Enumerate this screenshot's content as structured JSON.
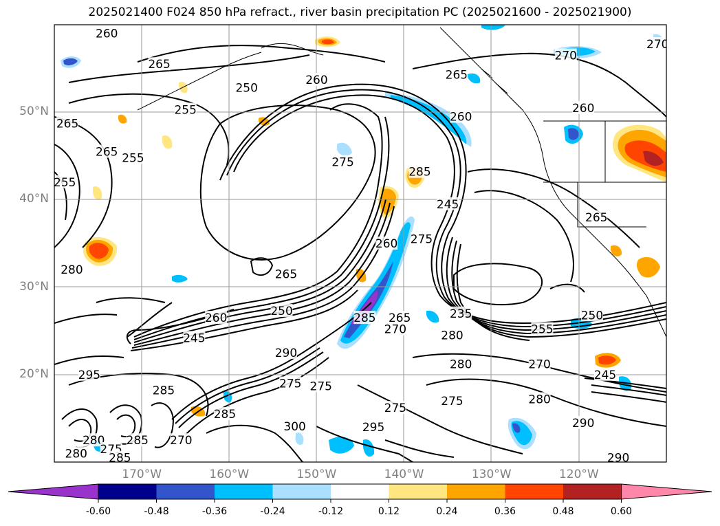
{
  "title": "2025021400 F024 850 hPa refract., river basin precipitation PC (2025021600 - 2025021900)",
  "map": {
    "lon_range": [
      -180,
      -110
    ],
    "lat_range": [
      10,
      60
    ],
    "grid": true,
    "lat_labels": [
      "50°N",
      "40°N",
      "30°N",
      "20°N"
    ],
    "lat_values": [
      50,
      40,
      30,
      20
    ],
    "lon_labels": [
      "170°W",
      "160°W",
      "150°W",
      "140°W",
      "130°W",
      "120°W"
    ],
    "lon_values": [
      -170,
      -160,
      -150,
      -140,
      -130,
      -120
    ],
    "contour_labels": [
      {
        "text": "260",
        "lon": -174,
        "lat": 59
      },
      {
        "text": "265",
        "lon": -168,
        "lat": 55.5
      },
      {
        "text": "250",
        "lon": -158,
        "lat": 52.8
      },
      {
        "text": "260",
        "lon": -150,
        "lat": 53.7
      },
      {
        "text": "255",
        "lon": -165,
        "lat": 50.3
      },
      {
        "text": "265",
        "lon": -178.5,
        "lat": 48.7
      },
      {
        "text": "265",
        "lon": -174,
        "lat": 45.5
      },
      {
        "text": "255",
        "lon": -171,
        "lat": 44.8
      },
      {
        "text": "255",
        "lon": -178.8,
        "lat": 42
      },
      {
        "text": "275",
        "lon": -147,
        "lat": 44.3
      },
      {
        "text": "285",
        "lon": -138.2,
        "lat": 43.2
      },
      {
        "text": "245",
        "lon": -135,
        "lat": 39.5
      },
      {
        "text": "275",
        "lon": -138,
        "lat": 35.5
      },
      {
        "text": "260",
        "lon": -142,
        "lat": 35
      },
      {
        "text": "265",
        "lon": -153.5,
        "lat": 31.5
      },
      {
        "text": "280",
        "lon": -178,
        "lat": 32
      },
      {
        "text": "250",
        "lon": -154,
        "lat": 27.3
      },
      {
        "text": "260",
        "lon": -161.5,
        "lat": 26.5
      },
      {
        "text": "285",
        "lon": -144.5,
        "lat": 26.5
      },
      {
        "text": "265",
        "lon": -140.5,
        "lat": 26.5
      },
      {
        "text": "270",
        "lon": -141,
        "lat": 25.2
      },
      {
        "text": "235",
        "lon": -133.5,
        "lat": 27
      },
      {
        "text": "280",
        "lon": -134.5,
        "lat": 24.5
      },
      {
        "text": "255",
        "lon": -124.2,
        "lat": 25.2
      },
      {
        "text": "250",
        "lon": -118.5,
        "lat": 26.8
      },
      {
        "text": "265",
        "lon": -118,
        "lat": 38
      },
      {
        "text": "260",
        "lon": -119.5,
        "lat": 50.5
      },
      {
        "text": "260",
        "lon": -133.5,
        "lat": 49.5
      },
      {
        "text": "270",
        "lon": -121.5,
        "lat": 56.5
      },
      {
        "text": "270",
        "lon": -111,
        "lat": 57.8
      },
      {
        "text": "265",
        "lon": -134,
        "lat": 54.3
      },
      {
        "text": "245",
        "lon": -164,
        "lat": 24.2
      },
      {
        "text": "290",
        "lon": -153.5,
        "lat": 22.5
      },
      {
        "text": "280",
        "lon": -133.5,
        "lat": 21.2
      },
      {
        "text": "270",
        "lon": -124.5,
        "lat": 21.2
      },
      {
        "text": "245",
        "lon": -117,
        "lat": 20
      },
      {
        "text": "280",
        "lon": -124.5,
        "lat": 17.2
      },
      {
        "text": "275",
        "lon": -134.5,
        "lat": 17
      },
      {
        "text": "275",
        "lon": -141,
        "lat": 16.2
      },
      {
        "text": "295",
        "lon": -143.5,
        "lat": 14
      },
      {
        "text": "290",
        "lon": -119.5,
        "lat": 14.5
      },
      {
        "text": "290",
        "lon": -115.5,
        "lat": 10.5
      },
      {
        "text": "295",
        "lon": -176,
        "lat": 20
      },
      {
        "text": "285",
        "lon": -167.5,
        "lat": 18.2
      },
      {
        "text": "285",
        "lon": -160.5,
        "lat": 15.5
      },
      {
        "text": "300",
        "lon": -152.5,
        "lat": 14.1
      },
      {
        "text": "275",
        "lon": -149.5,
        "lat": 18.7
      },
      {
        "text": "275",
        "lon": -153,
        "lat": 19
      },
      {
        "text": "270",
        "lon": -165.5,
        "lat": 12.5
      },
      {
        "text": "285",
        "lon": -170.5,
        "lat": 12.5
      },
      {
        "text": "280",
        "lon": -175.5,
        "lat": 12.5
      },
      {
        "text": "275",
        "lon": -173.5,
        "lat": 11.5
      },
      {
        "text": "280",
        "lon": -177.5,
        "lat": 11
      },
      {
        "text": "285",
        "lon": -172.5,
        "lat": 10.5
      }
    ]
  },
  "colorbar": {
    "labels": [
      "-0.60",
      "-0.48",
      "-0.36",
      "-0.24",
      "-0.12",
      "0.12",
      "0.24",
      "0.36",
      "0.48",
      "0.60"
    ],
    "colors": [
      "#9933cc",
      "#00008b",
      "#3355cc",
      "#00bfff",
      "#aadfff",
      "#ffffff",
      "#ffe680",
      "#ffa500",
      "#ff4500",
      "#b22222",
      "#ff88aa"
    ]
  }
}
